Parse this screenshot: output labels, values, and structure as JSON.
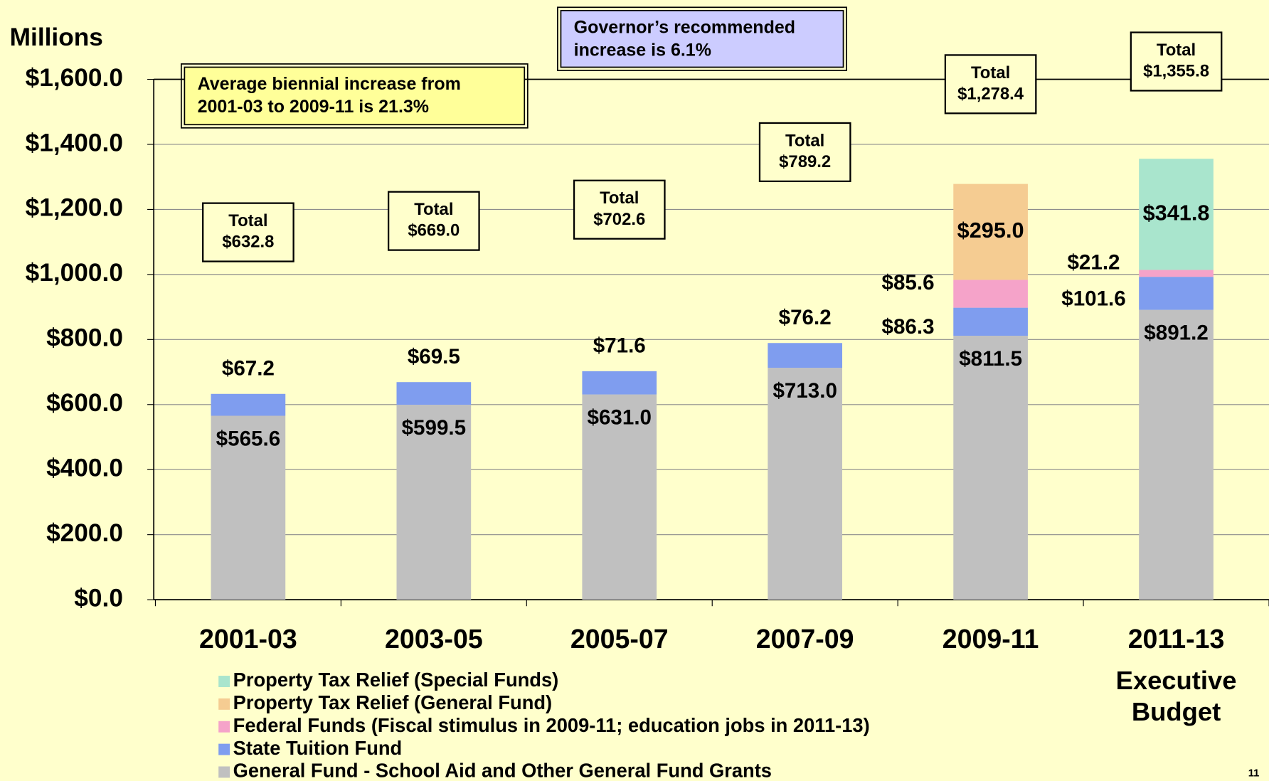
{
  "chart_data": {
    "type": "stacked_bar",
    "y_axis_label": "Millions",
    "categories": [
      "2001-03",
      "2003-05",
      "2005-07",
      "2007-09",
      "2009-11",
      "2011-13"
    ],
    "series": [
      {
        "name": "General Fund - School Aid and Other General Fund Grants",
        "color": "#c0c0c0",
        "values": [
          565.6,
          599.5,
          631.0,
          713.0,
          811.5,
          891.2
        ],
        "value_labels": [
          "$565.6",
          "$599.5",
          "$631.0",
          "$713.0",
          "$811.5",
          "$891.2"
        ]
      },
      {
        "name": "State Tuition Fund",
        "color": "#7f9def",
        "values": [
          67.2,
          69.5,
          71.6,
          76.2,
          86.3,
          101.6
        ],
        "value_labels": [
          "$67.2",
          "$69.5",
          "$71.6",
          "$76.2",
          "$86.3",
          "$101.6"
        ]
      },
      {
        "name": "Federal Funds (Fiscal stimulus in 2009-11; education jobs in 2011-13)",
        "color": "#f5a3c9",
        "values": [
          null,
          null,
          null,
          null,
          85.6,
          21.2
        ],
        "value_labels": [
          null,
          null,
          null,
          null,
          "$85.6",
          "$21.2"
        ]
      },
      {
        "name": "Property Tax Relief (General Fund)",
        "color": "#f5cc92",
        "values": [
          null,
          null,
          null,
          null,
          295.0,
          null
        ],
        "value_labels": [
          null,
          null,
          null,
          null,
          "$295.0",
          null
        ]
      },
      {
        "name": "Property Tax Relief (Special Funds)",
        "color": "#a9e5cd",
        "values": [
          null,
          null,
          null,
          null,
          null,
          341.8
        ],
        "value_labels": [
          null,
          null,
          null,
          null,
          null,
          "$341.8"
        ]
      }
    ],
    "totals": {
      "label": "Total",
      "values": [
        632.8,
        669.0,
        702.6,
        789.2,
        1278.4,
        1355.8
      ],
      "value_labels": [
        "$632.8",
        "$669.0",
        "$702.6",
        "$789.2",
        "$1,278.4",
        "$1,355.8"
      ]
    },
    "ylim": [
      0,
      1600
    ],
    "yticks": [
      {
        "value": 0,
        "label": "$0.0"
      },
      {
        "value": 200,
        "label": "$200.0"
      },
      {
        "value": 400,
        "label": "$400.0"
      },
      {
        "value": 600,
        "label": "$600.0"
      },
      {
        "value": 800,
        "label": "$800.0"
      },
      {
        "value": 1000,
        "label": "$1,000.0"
      },
      {
        "value": 1200,
        "label": "$1,200.0"
      },
      {
        "value": 1400,
        "label": "$1,400.0"
      },
      {
        "value": 1600,
        "label": "$1,600.0"
      }
    ],
    "grid": true,
    "annotations": [
      {
        "lines": [
          "Average biennial increase from",
          "2001-03 to 2009-11 is 21.3%"
        ]
      },
      {
        "lines": [
          "Governor’s recommended",
          "increase is 6.1%"
        ]
      },
      {
        "lines": [
          "Executive",
          "Budget"
        ]
      }
    ],
    "page_number": "11"
  }
}
